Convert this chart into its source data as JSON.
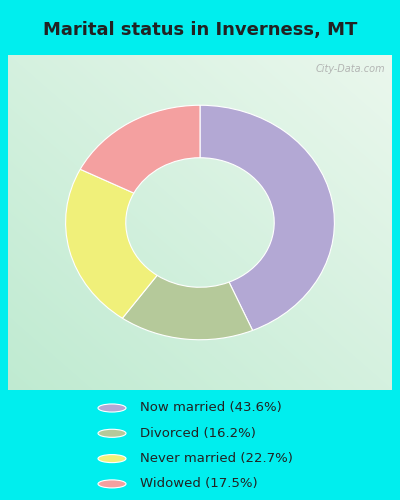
{
  "title": "Marital status in Inverness, MT",
  "slices": [
    43.6,
    16.2,
    22.7,
    17.5
  ],
  "labels": [
    "Now married (43.6%)",
    "Divorced (16.2%)",
    "Never married (22.7%)",
    "Widowed (17.5%)"
  ],
  "colors": [
    "#b3a8d4",
    "#b5c99a",
    "#f0f07a",
    "#f4a0a0"
  ],
  "legend_colors": [
    "#b3a8d4",
    "#b5c99a",
    "#f0f07a",
    "#f4a0a0"
  ],
  "bg_color_cyan": "#00eeee",
  "watermark": "City-Data.com",
  "donut_outer": 1.05,
  "donut_inner": 0.58,
  "start_angle": 90,
  "figsize": [
    4.0,
    5.0
  ],
  "dpi": 100
}
